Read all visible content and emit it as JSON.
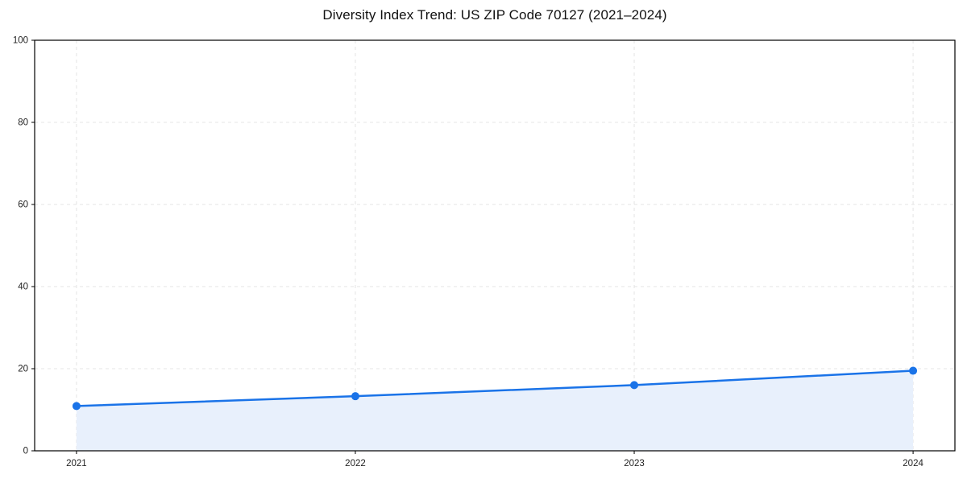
{
  "chart_data": {
    "type": "line",
    "title": "Diversity Index Trend: US ZIP Code 70127 (2021–2024)",
    "series_name": "Diversity Index",
    "x": [
      2021,
      2022,
      2023,
      2024
    ],
    "values": [
      10.9,
      13.3,
      16.0,
      19.5
    ],
    "xlabel": "",
    "ylabel": "",
    "xlim": [
      2020.85,
      2024.15
    ],
    "ylim": [
      0,
      100
    ],
    "yticks": [
      0,
      20,
      40,
      60,
      80,
      100
    ],
    "xticks": [
      2021,
      2022,
      2023,
      2024
    ],
    "xtick_labels": [
      "2021",
      "2022",
      "2023",
      "2024"
    ],
    "grid": true,
    "grid_style": "dashed",
    "legend_position": "none",
    "area_fill": true,
    "marker": "circle",
    "colors": {
      "line": "#1a73e8",
      "marker": "#1a73e8",
      "fill": "#e8f0fc",
      "grid": "#e4e4e4",
      "axis": "#000000",
      "tick_label": "#222222",
      "background": "#ffffff"
    }
  }
}
